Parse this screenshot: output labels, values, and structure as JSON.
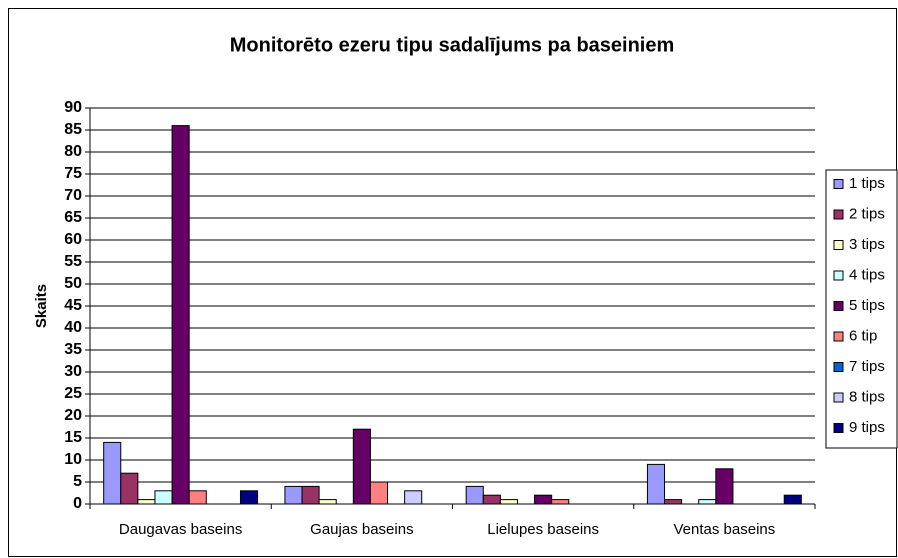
{
  "chart_data": {
    "type": "bar",
    "title": "Monitorēto ezeru tipu sadalījums pa baseiniem",
    "y_label": "Skaits",
    "categories": [
      "Daugavas baseins",
      "Gaujas baseins",
      "Lielupes baseins",
      "Ventas baseins"
    ],
    "series": [
      {
        "name": "1 tips",
        "color": "#9999FF",
        "values": [
          14,
          4,
          4,
          9
        ]
      },
      {
        "name": "2 tips",
        "color": "#993366",
        "values": [
          7,
          4,
          2,
          1
        ]
      },
      {
        "name": "3 tips",
        "color": "#FFFFCC",
        "values": [
          1,
          1,
          1,
          0
        ]
      },
      {
        "name": "4 tips",
        "color": "#CCFFFF",
        "values": [
          3,
          0,
          0,
          1
        ]
      },
      {
        "name": "5 tips",
        "color": "#660066",
        "values": [
          86,
          17,
          2,
          8
        ]
      },
      {
        "name": "6 tip",
        "color": "#FF8080",
        "values": [
          3,
          5,
          1,
          0
        ]
      },
      {
        "name": "7 tips",
        "color": "#0066CC",
        "values": [
          0,
          0,
          0,
          0
        ]
      },
      {
        "name": "8 tips",
        "color": "#CCCCFF",
        "values": [
          0,
          3,
          0,
          0
        ]
      },
      {
        "name": "9 tips",
        "color": "#000080",
        "values": [
          3,
          0,
          0,
          2
        ]
      }
    ],
    "ylim": [
      0,
      90
    ],
    "yticks": [
      0,
      5,
      10,
      15,
      20,
      25,
      30,
      35,
      40,
      45,
      50,
      55,
      60,
      65,
      70,
      75,
      80,
      85,
      90
    ],
    "grid": true,
    "legend": "right"
  }
}
